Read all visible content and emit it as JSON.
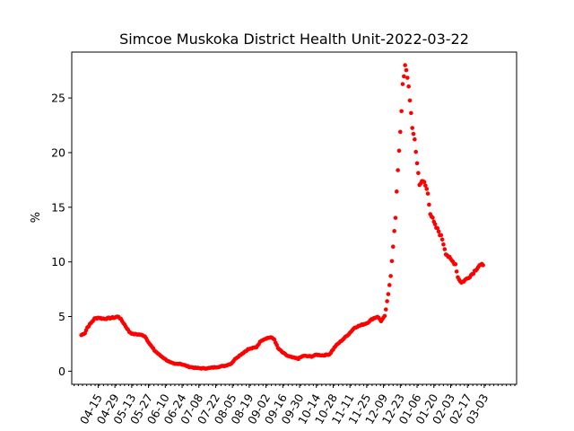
{
  "chart_data": {
    "type": "scatter",
    "title": "Simcoe Muskoka District Health Unit-2022-03-22",
    "xlabel": "",
    "ylabel": "%",
    "ylim": [
      -1.2,
      29.2
    ],
    "yticks": [
      0,
      5,
      10,
      15,
      20,
      25
    ],
    "x_start": "2021-04-01",
    "x_end": "2022-03-22",
    "xticks": [
      "04-15",
      "04-29",
      "05-13",
      "05-27",
      "06-10",
      "06-24",
      "07-08",
      "07-22",
      "08-05",
      "08-19",
      "09-02",
      "09-16",
      "09-30",
      "10-14",
      "10-28",
      "11-11",
      "11-25",
      "12-09",
      "12-23",
      "01-06",
      "01-20",
      "02-03",
      "02-17",
      "03-03"
    ],
    "marker_color": "#ff0000",
    "grid": false,
    "anchors": [
      [
        "2021-04-01",
        3.3
      ],
      [
        "2021-04-04",
        3.5
      ],
      [
        "2021-04-06",
        4.0
      ],
      [
        "2021-04-09",
        4.4
      ],
      [
        "2021-04-12",
        4.8
      ],
      [
        "2021-04-15",
        4.9
      ],
      [
        "2021-04-20",
        4.8
      ],
      [
        "2021-04-24",
        4.85
      ],
      [
        "2021-04-28",
        4.9
      ],
      [
        "2021-05-02",
        5.0
      ],
      [
        "2021-05-05",
        4.6
      ],
      [
        "2021-05-08",
        4.1
      ],
      [
        "2021-05-11",
        3.6
      ],
      [
        "2021-05-14",
        3.4
      ],
      [
        "2021-05-20",
        3.35
      ],
      [
        "2021-05-24",
        3.2
      ],
      [
        "2021-05-28",
        2.5
      ],
      [
        "2021-06-01",
        1.9
      ],
      [
        "2021-06-05",
        1.5
      ],
      [
        "2021-06-10",
        1.1
      ],
      [
        "2021-06-14",
        0.8
      ],
      [
        "2021-06-18",
        0.65
      ],
      [
        "2021-06-22",
        0.7
      ],
      [
        "2021-06-26",
        0.55
      ],
      [
        "2021-06-30",
        0.4
      ],
      [
        "2021-07-05",
        0.3
      ],
      [
        "2021-07-12",
        0.25
      ],
      [
        "2021-07-18",
        0.3
      ],
      [
        "2021-07-24",
        0.4
      ],
      [
        "2021-07-30",
        0.5
      ],
      [
        "2021-08-04",
        0.7
      ],
      [
        "2021-08-08",
        1.2
      ],
      [
        "2021-08-13",
        1.6
      ],
      [
        "2021-08-18",
        2.0
      ],
      [
        "2021-08-25",
        2.2
      ],
      [
        "2021-08-29",
        2.8
      ],
      [
        "2021-09-02",
        3.0
      ],
      [
        "2021-09-06",
        3.1
      ],
      [
        "2021-09-09",
        2.9
      ],
      [
        "2021-09-12",
        2.1
      ],
      [
        "2021-09-16",
        1.7
      ],
      [
        "2021-09-20",
        1.4
      ],
      [
        "2021-09-24",
        1.25
      ],
      [
        "2021-09-29",
        1.15
      ],
      [
        "2021-10-03",
        1.4
      ],
      [
        "2021-10-10",
        1.35
      ],
      [
        "2021-10-14",
        1.5
      ],
      [
        "2021-10-20",
        1.45
      ],
      [
        "2021-10-25",
        1.55
      ],
      [
        "2021-10-30",
        2.3
      ],
      [
        "2021-11-05",
        2.9
      ],
      [
        "2021-11-10",
        3.4
      ],
      [
        "2021-11-15",
        4.0
      ],
      [
        "2021-11-20",
        4.2
      ],
      [
        "2021-11-25",
        4.4
      ],
      [
        "2021-11-30",
        4.8
      ],
      [
        "2021-12-04",
        5.0
      ],
      [
        "2021-12-07",
        4.6
      ],
      [
        "2021-12-10",
        5.0
      ],
      [
        "2021-12-13",
        7.0
      ],
      [
        "2021-12-15",
        8.8
      ],
      [
        "2021-12-17",
        11.5
      ],
      [
        "2021-12-19",
        14.0
      ],
      [
        "2021-12-21",
        18.5
      ],
      [
        "2021-12-23",
        22.0
      ],
      [
        "2021-12-25",
        26.0
      ],
      [
        "2021-12-27",
        27.8
      ],
      [
        "2021-12-29",
        27.0
      ],
      [
        "2021-12-31",
        25.0
      ],
      [
        "2022-01-02",
        22.0
      ],
      [
        "2022-01-04",
        21.3
      ],
      [
        "2022-01-06",
        19.0
      ],
      [
        "2022-01-08",
        17.2
      ],
      [
        "2022-01-12",
        17.3
      ],
      [
        "2022-01-15",
        16.3
      ],
      [
        "2022-01-17",
        14.5
      ],
      [
        "2022-01-21",
        13.3
      ],
      [
        "2022-01-24",
        12.8
      ],
      [
        "2022-01-27",
        12.1
      ],
      [
        "2022-01-30",
        10.8
      ],
      [
        "2022-02-03",
        10.2
      ],
      [
        "2022-02-07",
        9.8
      ],
      [
        "2022-02-09",
        8.6
      ],
      [
        "2022-02-12",
        8.1
      ],
      [
        "2022-02-17",
        8.5
      ],
      [
        "2022-02-21",
        8.9
      ],
      [
        "2022-02-24",
        9.3
      ],
      [
        "2022-02-27",
        9.7
      ],
      [
        "2022-03-02",
        9.7
      ]
    ]
  }
}
